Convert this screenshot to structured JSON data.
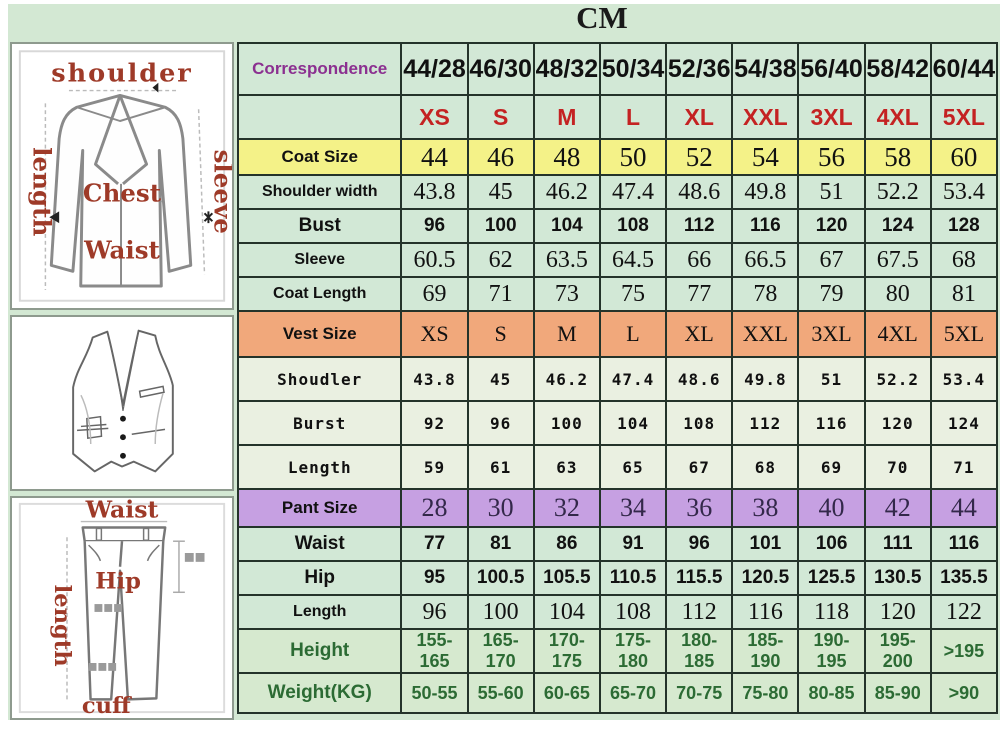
{
  "title": "CM",
  "diagrams": {
    "jacket": {
      "labels": {
        "shoulder": "shoulder",
        "length": "length",
        "sleeve": "sleeve",
        "chest": "Chest",
        "waist": "Waist"
      }
    },
    "vest": {},
    "pants": {
      "labels": {
        "waist": "Waist",
        "length": "length",
        "hip": "Hip",
        "cuff": "cuff"
      }
    }
  },
  "table": {
    "rows": [
      {
        "type": "correspondence",
        "label": "Correspondence",
        "values": [
          "44/28",
          "46/30",
          "48/32",
          "50/34",
          "52/36",
          "54/38",
          "56/40",
          "58/42",
          "60/44"
        ]
      },
      {
        "type": "letters",
        "label": "",
        "values": [
          "XS",
          "S",
          "M",
          "L",
          "XL",
          "XXL",
          "3XL",
          "4XL",
          "5XL"
        ]
      },
      {
        "type": "coatsize",
        "label": "Coat Size",
        "values": [
          "44",
          "46",
          "48",
          "50",
          "52",
          "54",
          "56",
          "58",
          "60"
        ]
      },
      {
        "type": "serif",
        "label": "Shoulder width",
        "values": [
          "43.8",
          "45",
          "46.2",
          "47.4",
          "48.6",
          "49.8",
          "51",
          "52.2",
          "53.4"
        ]
      },
      {
        "type": "sans",
        "label": "Bust",
        "values": [
          "96",
          "100",
          "104",
          "108",
          "112",
          "116",
          "120",
          "124",
          "128"
        ]
      },
      {
        "type": "serif",
        "label": "Sleeve",
        "values": [
          "60.5",
          "62",
          "63.5",
          "64.5",
          "66",
          "66.5",
          "67",
          "67.5",
          "68"
        ]
      },
      {
        "type": "serif",
        "label": "Coat Length",
        "values": [
          "69",
          "71",
          "73",
          "75",
          "77",
          "78",
          "79",
          "80",
          "81"
        ]
      },
      {
        "type": "vestsize",
        "label": "Vest Size",
        "values": [
          "XS",
          "S",
          "M",
          "L",
          "XL",
          "XXL",
          "3XL",
          "4XL",
          "5XL"
        ]
      },
      {
        "type": "vest",
        "label": "Shoudler",
        "values": [
          "43.8",
          "45",
          "46.2",
          "47.4",
          "48.6",
          "49.8",
          "51",
          "52.2",
          "53.4"
        ]
      },
      {
        "type": "vest",
        "label": "Burst",
        "values": [
          "92",
          "96",
          "100",
          "104",
          "108",
          "112",
          "116",
          "120",
          "124"
        ]
      },
      {
        "type": "vest",
        "label": "Length",
        "values": [
          "59",
          "61",
          "63",
          "65",
          "67",
          "68",
          "69",
          "70",
          "71"
        ]
      },
      {
        "type": "pantsize",
        "label": "Pant Size",
        "values": [
          "28",
          "30",
          "32",
          "34",
          "36",
          "38",
          "40",
          "42",
          "44"
        ]
      },
      {
        "type": "sans",
        "label": "Waist",
        "values": [
          "77",
          "81",
          "86",
          "91",
          "96",
          "101",
          "106",
          "111",
          "116"
        ]
      },
      {
        "type": "sans",
        "label": "Hip",
        "values": [
          "95",
          "100.5",
          "105.5",
          "110.5",
          "115.5",
          "120.5",
          "125.5",
          "130.5",
          "135.5"
        ]
      },
      {
        "type": "serif",
        "label": "Length",
        "values": [
          "96",
          "100",
          "104",
          "108",
          "112",
          "116",
          "118",
          "120",
          "122"
        ]
      },
      {
        "type": "fit",
        "label": "Height",
        "values": [
          "155-165",
          "165-170",
          "170-175",
          "175-180",
          "180-185",
          "185-190",
          "190-195",
          "195-200",
          ">195"
        ]
      },
      {
        "type": "fit",
        "label": "Weight(KG)",
        "values": [
          "50-55",
          "55-60",
          "60-65",
          "65-70",
          "70-75",
          "75-80",
          "80-85",
          "85-90",
          ">90"
        ]
      }
    ]
  },
  "colors": {
    "page_green": "#d3e8d3",
    "coat_row_yellow": "#f4f288",
    "vest_row_orange": "#f1a87b",
    "pant_row_purple": "#c6a0e2",
    "size_letter_red": "#c42222",
    "correspondence_purple": "#8b3090",
    "fit_text_green": "#2c6b34",
    "diagram_label_red": "#9e3a28"
  }
}
